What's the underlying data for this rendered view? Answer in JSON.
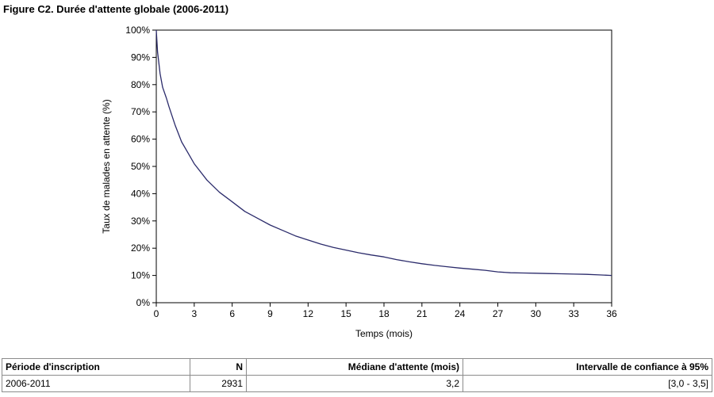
{
  "figure": {
    "title": "Figure C2. Durée d'attente globale (2006-2011)"
  },
  "chart_data": {
    "type": "line",
    "title": "",
    "xlabel": "Temps (mois)",
    "ylabel": "Taux de malades en attente (%)",
    "xlim": [
      0,
      36
    ],
    "ylim": [
      0,
      100
    ],
    "x_ticks": [
      "0",
      "3",
      "6",
      "9",
      "12",
      "15",
      "18",
      "21",
      "24",
      "27",
      "30",
      "33",
      "36"
    ],
    "y_ticks": [
      "0%",
      "10%",
      "20%",
      "30%",
      "40%",
      "50%",
      "60%",
      "70%",
      "80%",
      "90%",
      "100%"
    ],
    "grid": false,
    "line_color": "#2b2b6b",
    "series": [
      {
        "x": [
          0,
          0.1,
          0.3,
          0.5,
          0.8,
          1,
          1.5,
          2,
          2.5,
          3,
          4,
          5,
          6,
          7,
          8,
          9,
          10,
          11,
          12,
          13,
          14,
          15,
          16,
          17,
          18,
          19,
          20,
          21,
          22,
          23,
          24,
          25,
          26,
          27,
          28,
          29,
          30,
          31,
          32,
          33,
          34,
          35,
          36
        ],
        "y": [
          100,
          92,
          84,
          79,
          75,
          72,
          65,
          59,
          55,
          51,
          45,
          40.5,
          37,
          33.5,
          31,
          28.5,
          26.5,
          24.5,
          23,
          21.5,
          20.3,
          19.3,
          18.3,
          17.5,
          16.8,
          15.8,
          15,
          14.3,
          13.7,
          13.2,
          12.7,
          12.3,
          11.9,
          11.3,
          11,
          10.9,
          10.8,
          10.7,
          10.6,
          10.5,
          10.4,
          10.2,
          10
        ]
      }
    ]
  },
  "table": {
    "headers": [
      "Période d'inscription",
      "N",
      "Médiane d'attente (mois)",
      "Intervalle de confiance à 95%"
    ],
    "rows": [
      [
        "2006-2011",
        "2931",
        "3,2",
        "[3,0 - 3,5]"
      ]
    ]
  }
}
